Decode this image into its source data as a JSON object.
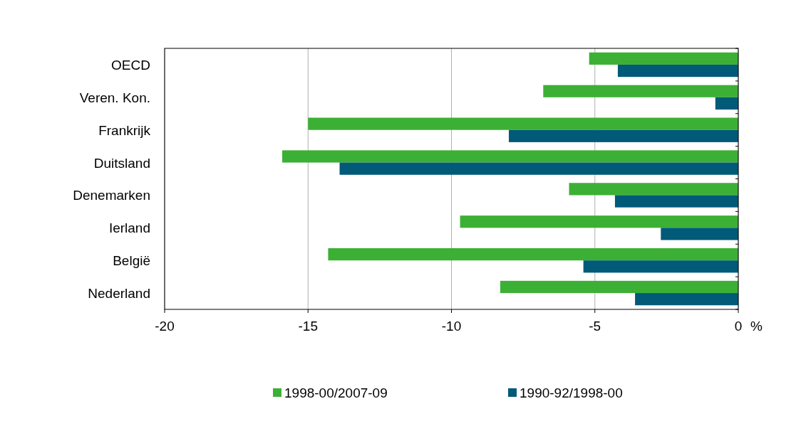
{
  "chart_data": {
    "type": "bar",
    "orientation": "horizontal",
    "xlabel": "%",
    "categories": [
      "OECD",
      "Veren. Kon.",
      "Frankrijk",
      "Duitsland",
      "Denemarken",
      "Ierland",
      "België",
      "Nederland"
    ],
    "series": [
      {
        "name": "1998-00/2007-09",
        "color": "#3cb034",
        "values": [
          -5.2,
          -6.8,
          -15.0,
          -15.9,
          -5.9,
          -9.7,
          -14.3,
          -8.3
        ]
      },
      {
        "name": "1990-92/1998-00",
        "color": "#005a78",
        "values": [
          -4.2,
          -0.8,
          -8.0,
          -13.9,
          -4.3,
          -2.7,
          -5.4,
          -3.6
        ]
      }
    ],
    "xlim": [
      -20,
      0
    ],
    "xticks": [
      -20,
      -15,
      -10,
      -5,
      0
    ],
    "grid": "x",
    "legend": "bottom"
  }
}
